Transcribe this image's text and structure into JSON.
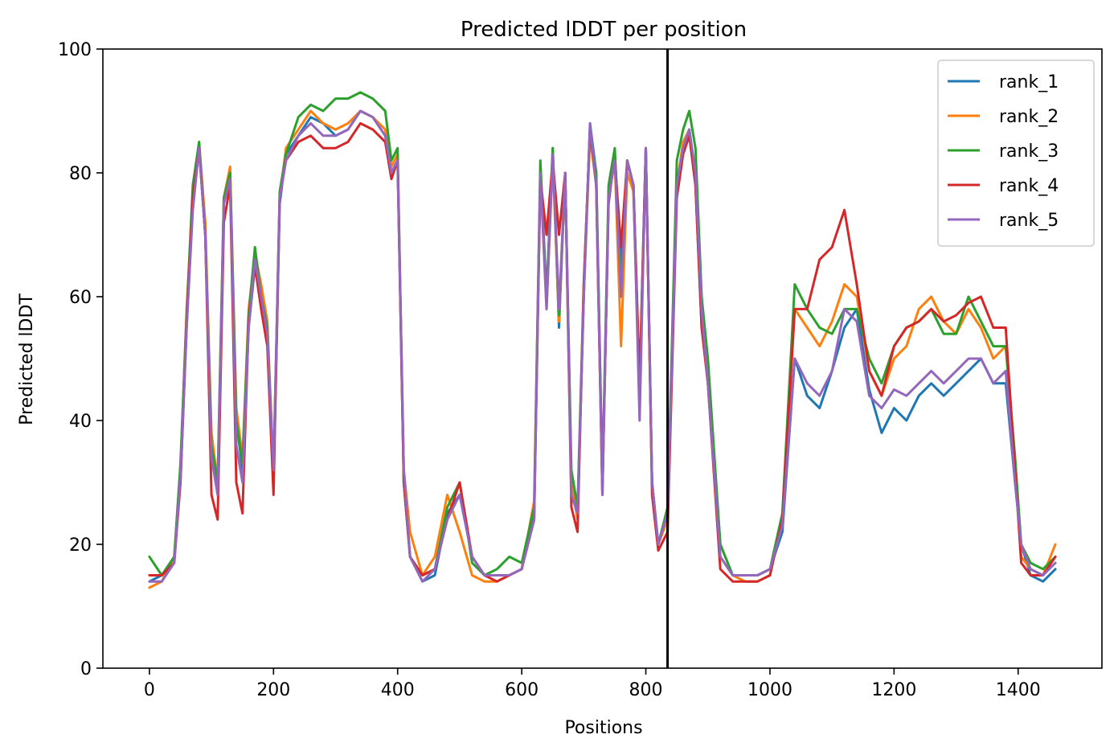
{
  "chart_data": {
    "type": "line",
    "title": "Predicted lDDT per position",
    "xlabel": "Positions",
    "ylabel": "Predicted lDDT",
    "xlim": [
      -75,
      1535
    ],
    "ylim": [
      0,
      100
    ],
    "xticks": [
      0,
      200,
      400,
      600,
      800,
      1000,
      1200,
      1400
    ],
    "yticks": [
      0,
      20,
      40,
      60,
      80,
      100
    ],
    "grid": false,
    "legend_position": "top-right",
    "vline_x": 835,
    "vline_color": "#000000",
    "x": [
      0,
      20,
      40,
      50,
      60,
      70,
      80,
      90,
      100,
      110,
      120,
      130,
      140,
      150,
      160,
      170,
      180,
      190,
      200,
      210,
      220,
      240,
      260,
      280,
      300,
      320,
      340,
      360,
      380,
      390,
      400,
      410,
      420,
      440,
      460,
      480,
      500,
      520,
      540,
      560,
      580,
      600,
      620,
      630,
      640,
      650,
      660,
      670,
      680,
      690,
      700,
      710,
      720,
      730,
      740,
      750,
      760,
      770,
      780,
      790,
      800,
      810,
      820,
      835,
      850,
      860,
      870,
      880,
      890,
      900,
      920,
      940,
      960,
      980,
      1000,
      1020,
      1040,
      1060,
      1080,
      1100,
      1120,
      1140,
      1160,
      1180,
      1200,
      1220,
      1240,
      1260,
      1280,
      1300,
      1320,
      1340,
      1360,
      1380,
      1395,
      1405,
      1420,
      1440,
      1460
    ],
    "series": [
      {
        "name": "rank_1",
        "color": "#1f77b4",
        "values": [
          14,
          15,
          18,
          30,
          55,
          75,
          84,
          70,
          35,
          28,
          75,
          80,
          40,
          32,
          55,
          65,
          60,
          55,
          30,
          75,
          83,
          86,
          89,
          88,
          86,
          87,
          90,
          89,
          86,
          80,
          82,
          30,
          18,
          14,
          15,
          25,
          28,
          18,
          15,
          15,
          15,
          16,
          25,
          80,
          60,
          84,
          55,
          80,
          30,
          25,
          60,
          88,
          80,
          30,
          75,
          83,
          65,
          82,
          78,
          45,
          84,
          30,
          20,
          25,
          78,
          84,
          87,
          78,
          55,
          48,
          20,
          15,
          15,
          15,
          16,
          22,
          50,
          44,
          42,
          48,
          55,
          58,
          45,
          38,
          42,
          40,
          44,
          46,
          44,
          46,
          48,
          50,
          46,
          46,
          30,
          20,
          15,
          14,
          16
        ]
      },
      {
        "name": "rank_2",
        "color": "#ff7f0e",
        "values": [
          13,
          14,
          18,
          32,
          58,
          76,
          85,
          72,
          38,
          30,
          76,
          81,
          42,
          34,
          58,
          67,
          62,
          56,
          32,
          76,
          84,
          87,
          90,
          88,
          87,
          88,
          90,
          89,
          87,
          81,
          83,
          32,
          22,
          15,
          18,
          28,
          22,
          15,
          14,
          14,
          15,
          16,
          27,
          80,
          58,
          82,
          56,
          80,
          30,
          24,
          60,
          86,
          78,
          28,
          76,
          82,
          52,
          80,
          77,
          44,
          83,
          30,
          20,
          24,
          78,
          85,
          87,
          80,
          58,
          50,
          18,
          15,
          14,
          14,
          15,
          24,
          58,
          55,
          52,
          56,
          62,
          60,
          48,
          44,
          50,
          52,
          58,
          60,
          56,
          54,
          58,
          55,
          50,
          52,
          34,
          18,
          16,
          15,
          20
        ]
      },
      {
        "name": "rank_3",
        "color": "#2ca02c",
        "values": [
          18,
          15,
          18,
          33,
          57,
          78,
          85,
          70,
          36,
          30,
          76,
          80,
          40,
          33,
          57,
          68,
          60,
          55,
          31,
          77,
          83,
          89,
          91,
          90,
          92,
          92,
          93,
          92,
          90,
          82,
          84,
          30,
          18,
          15,
          16,
          26,
          30,
          17,
          15,
          16,
          18,
          17,
          26,
          82,
          60,
          84,
          57,
          80,
          32,
          26,
          62,
          87,
          80,
          30,
          78,
          84,
          62,
          82,
          78,
          45,
          84,
          30,
          20,
          26,
          82,
          87,
          90,
          84,
          60,
          50,
          20,
          15,
          15,
          15,
          16,
          25,
          62,
          58,
          55,
          54,
          58,
          58,
          50,
          46,
          52,
          55,
          56,
          58,
          54,
          54,
          60,
          56,
          52,
          52,
          34,
          20,
          17,
          16,
          18
        ]
      },
      {
        "name": "rank_4",
        "color": "#d62728",
        "values": [
          15,
          15,
          17,
          30,
          56,
          76,
          84,
          70,
          28,
          24,
          72,
          78,
          30,
          25,
          56,
          65,
          58,
          52,
          28,
          76,
          82,
          85,
          86,
          84,
          84,
          85,
          88,
          87,
          85,
          79,
          82,
          30,
          18,
          15,
          16,
          24,
          30,
          18,
          15,
          14,
          15,
          16,
          24,
          79,
          70,
          82,
          70,
          80,
          26,
          22,
          62,
          87,
          78,
          28,
          76,
          82,
          68,
          82,
          78,
          46,
          84,
          28,
          19,
          22,
          76,
          83,
          86,
          78,
          55,
          46,
          16,
          14,
          14,
          14,
          15,
          24,
          58,
          58,
          66,
          68,
          74,
          62,
          48,
          44,
          52,
          55,
          56,
          58,
          56,
          57,
          59,
          60,
          55,
          55,
          32,
          17,
          15,
          15,
          18
        ]
      },
      {
        "name": "rank_5",
        "color": "#9467bd",
        "values": [
          14,
          14,
          17,
          31,
          55,
          74,
          84,
          70,
          34,
          28,
          75,
          79,
          36,
          30,
          55,
          66,
          60,
          54,
          32,
          76,
          82,
          86,
          88,
          86,
          86,
          87,
          90,
          89,
          86,
          80,
          82,
          32,
          18,
          14,
          16,
          24,
          28,
          18,
          15,
          15,
          15,
          16,
          24,
          80,
          58,
          83,
          58,
          80,
          28,
          25,
          60,
          88,
          78,
          28,
          76,
          82,
          60,
          82,
          78,
          40,
          84,
          30,
          20,
          25,
          78,
          84,
          87,
          80,
          58,
          46,
          18,
          15,
          15,
          15,
          16,
          23,
          50,
          46,
          44,
          48,
          58,
          56,
          44,
          42,
          45,
          44,
          46,
          48,
          46,
          48,
          50,
          50,
          46,
          48,
          30,
          20,
          16,
          15,
          17
        ]
      }
    ]
  }
}
